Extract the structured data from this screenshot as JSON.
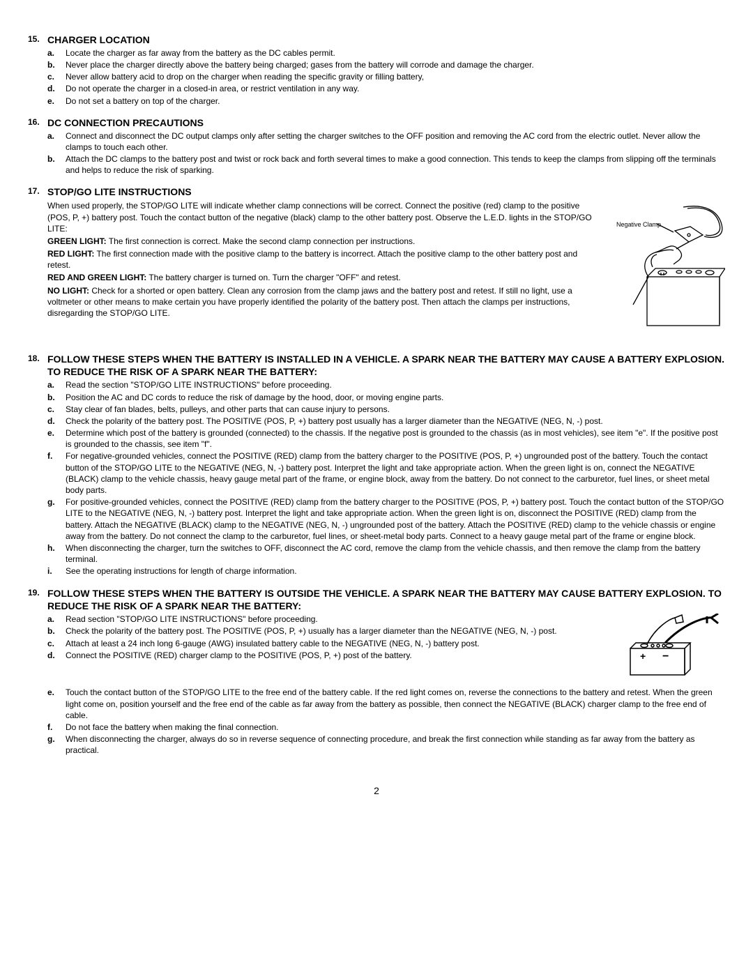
{
  "page_number": "2",
  "sections": [
    {
      "number": "15.",
      "title": "CHARGER LOCATION",
      "items": [
        {
          "letter": "a.",
          "text": "Locate the charger as far away from the battery as the DC cables permit."
        },
        {
          "letter": "b.",
          "text": "Never place the charger directly above the battery being charged; gases from the battery will corrode and damage the charger."
        },
        {
          "letter": "c.",
          "text": "Never allow battery acid to drop on the charger when reading the specific gravity or filling battery,"
        },
        {
          "letter": "d.",
          "text": "Do not operate the charger in a closed-in area, or restrict ventilation in any way."
        },
        {
          "letter": "e.",
          "text": "Do not set a battery on top of the charger."
        }
      ]
    },
    {
      "number": "16.",
      "title": "DC CONNECTION PRECAUTIONS",
      "items": [
        {
          "letter": "a.",
          "text": "Connect and disconnect the DC output clamps only after setting the charger switches to the OFF position and removing the AC cord from the electric outlet.  Never allow the clamps to touch each other."
        },
        {
          "letter": "b.",
          "text": "Attach the DC clamps to the battery post and twist or rock back and forth several times to make a good connection.  This tends to keep the clamps from slipping off the terminals and helps to reduce the risk of sparking."
        }
      ]
    },
    {
      "number": "17.",
      "title": "STOP/GO LITE INSTRUCTIONS",
      "illustration_label": "Negative Clamp",
      "paragraphs": [
        "When used properly, the STOP/GO LITE will indicate whether clamp connections will be correct.  Connect the positive (red) clamp to the positive (POS, P, +) battery post.  Touch the contact button of the negative (black) clamp to the other battery post.  Observe the L.E.D. lights in the STOP/GO LITE:"
      ],
      "tagged_lines": [
        {
          "label": "GREEN LIGHT:",
          "text": " The first connection is correct.  Make the second clamp connection per instructions."
        },
        {
          "label": "RED LIGHT:",
          "text": " The first connection made with the positive clamp to the battery is incorrect.  Attach the positive clamp to the other battery post and retest."
        },
        {
          "label": "RED AND GREEN LIGHT:",
          "text": " The battery charger is turned on.  Turn the charger \"OFF\" and retest."
        },
        {
          "label": "NO LIGHT:",
          "text": " Check for a shorted or open battery.  Clean any corrosion from the clamp jaws and the battery post and retest.  If still no light, use a voltmeter or other means to make certain you have properly identified the polarity of the battery post.  Then attach the clamps per instructions, disregarding the STOP/GO LITE."
        }
      ]
    },
    {
      "number": "18.",
      "title": "FOLLOW THESE STEPS WHEN THE BATTERY IS INSTALLED IN A VEHICLE.  A SPARK NEAR THE BATTERY MAY CAUSE A BATTERY EXPLOSION.  TO REDUCE THE RISK OF A SPARK NEAR THE BATTERY:",
      "items": [
        {
          "letter": "a.",
          "text": "Read the section \"STOP/GO LITE INSTRUCTIONS\" before proceeding."
        },
        {
          "letter": "b.",
          "text": "Position the AC and DC cords to reduce the risk of damage by the hood, door, or moving engine parts."
        },
        {
          "letter": "c.",
          "text": "Stay clear of fan blades, belts, pulleys, and other parts that can cause injury to persons."
        },
        {
          "letter": "d.",
          "text": "Check the polarity of the battery post.  The POSITIVE (POS, P, +) battery post usually has a larger diameter than the NEGATIVE (NEG, N, -) post."
        },
        {
          "letter": "e.",
          "text": "Determine which post of the battery is grounded (connected) to the chassis.  If the negative post is grounded to the chassis (as in most vehicles), see item \"e\".  If the positive post is grounded to the chassis, see item \"f\"."
        },
        {
          "letter": "f.",
          "text": "For negative-grounded vehicles, connect the POSITIVE (RED) clamp from the battery charger to the POSITIVE (POS, P, +) ungrounded post of the battery.  Touch the contact button of the STOP/GO LITE  to the NEGATIVE (NEG, N,  -) battery post.  Interpret the light and take appropriate action.  When the green light is on, connect the NEGATIVE (BLACK) clamp to the vehicle chassis, heavy gauge metal part of the frame, or engine block, away from the battery.  Do not connect to the carburetor, fuel lines, or sheet metal body parts."
        },
        {
          "letter": "g.",
          "text": "For positive-grounded vehicles, connect the POSITIVE (RED) clamp from the battery charger to the POSITIVE (POS, P, +) battery post.  Touch the contact button of the STOP/GO LITE to the NEGATIVE (NEG, N, -) battery post.  Interpret the light and take appropriate action.  When the green light is on, disconnect the POSITIVE (RED) clamp from the battery.  Attach the NEGATIVE (BLACK) clamp to the NEGATIVE (NEG, N, -) ungrounded post of the battery.  Attach the POSITIVE (RED) clamp to the vehicle chassis or engine away from the battery.  Do not connect the clamp to the carburetor, fuel lines, or sheet-metal body parts.  Connect to a heavy gauge metal part of the frame or engine block."
        },
        {
          "letter": "h.",
          "text": "When disconnecting the charger, turn the switches to OFF, disconnect the AC cord, remove the clamp from the vehicle chassis, and then remove the clamp from the battery terminal."
        },
        {
          "letter": "i.",
          "text": "See the operating instructions for length of charge information."
        }
      ]
    },
    {
      "number": "19.",
      "title": "FOLLOW THESE STEPS WHEN THE BATTERY IS OUTSIDE THE VEHICLE.  A SPARK NEAR THE BATTERY MAY CAUSE BATTERY EXPLOSION.  TO REDUCE THE RISK OF A SPARK NEAR THE BATTERY:",
      "items_break_after": 4,
      "items": [
        {
          "letter": "a.",
          "text": "Read section \"STOP/GO LITE INSTRUCTIONS\" before proceeding."
        },
        {
          "letter": "b.",
          "text": "Check the polarity of the battery post.  The POSITIVE (POS, P, +) usually has a larger diameter than the NEGATIVE (NEG, N, -) post."
        },
        {
          "letter": "c.",
          "text": "Attach at least a 24 inch long 6-gauge (AWG) insulated battery cable to the NEGATIVE (NEG, N, -) battery post."
        },
        {
          "letter": "d.",
          "text": "Connect the POSITIVE (RED) charger clamp to the POSITIVE (POS, P, +) post of the battery."
        },
        {
          "letter": "e.",
          "text": "Touch the contact button of the STOP/GO LITE to the free end  of the battery cable.  If the red light comes on, reverse the connections to the battery and retest.  When the green light come on, position yourself and the free end of the cable as far away from the battery as possible, then connect the NEGATIVE (BLACK) charger clamp to the free end of cable."
        },
        {
          "letter": "f.",
          "text": "Do not face the battery when making the final connection."
        },
        {
          "letter": "g.",
          "text": "When disconnecting the charger, always do so in reverse sequence of connecting procedure, and break the first connection while standing as far away from the battery as practical."
        }
      ]
    }
  ]
}
